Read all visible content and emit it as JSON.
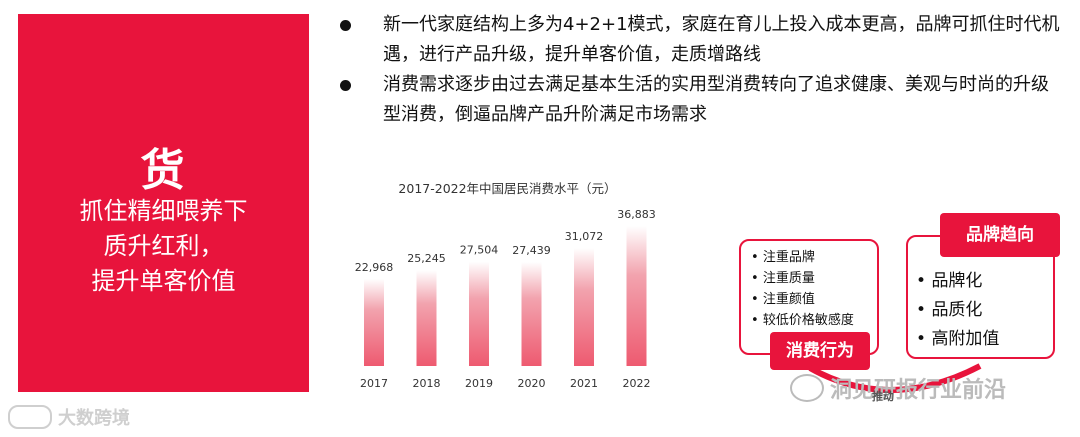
{
  "left_panel": {
    "title": "货",
    "lines": [
      "抓住精细喂养下",
      "质升红利，",
      "提升单客价值"
    ]
  },
  "bullets": [
    {
      "text": "新一代家庭结构上多为4+2+1模式，家庭在育儿上投入成本更高，品牌可抓住时代机遇，进行产品升级，提升单客价值，走质增路线"
    },
    {
      "text": "消费需求逐步由过去满足基本生活的实用型消费转向了追求健康、美观与时尚的升级型消费，倒逼品牌产品升阶满足市场需求"
    }
  ],
  "chart_data": {
    "type": "bar",
    "title": "2017-2022年中国居民消费水平（元）",
    "categories": [
      "2017",
      "2018",
      "2019",
      "2020",
      "2021",
      "2022"
    ],
    "values": [
      22968,
      25245,
      27504,
      27439,
      31072,
      36883
    ],
    "value_labels": [
      "22,968",
      "25,245",
      "27,504",
      "27,439",
      "31,072",
      "36,883"
    ],
    "ylim": [
      0,
      40000
    ],
    "grid": false,
    "bar_color_top": "#ffffff",
    "bar_color_bottom": "#ee5a70"
  },
  "consumer_behavior": {
    "label": "消费行为",
    "items": [
      "注重品牌",
      "注重质量",
      "注重颜值",
      "较低价格敏感度"
    ]
  },
  "brand_trend": {
    "label": "品牌趋向",
    "items": [
      "品牌化",
      "品质化",
      "高附加值"
    ]
  },
  "push_label": "推动",
  "watermarks": {
    "right": "洞见研报行业前沿",
    "left": "大数跨境"
  },
  "colors": {
    "accent": "#e8143c"
  }
}
